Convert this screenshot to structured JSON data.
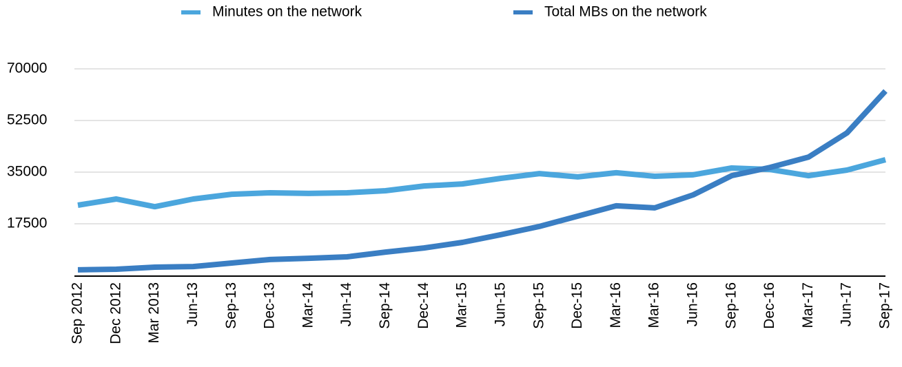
{
  "chart_data": {
    "type": "line",
    "categories": [
      "Sep 2012",
      "Dec 2012",
      "Mar 2013",
      "Jun-13",
      "Sep-13",
      "Dec-13",
      "Mar-14",
      "Jun-14",
      "Sep-14",
      "Dec-14",
      "Mar-15",
      "Jun-15",
      "Sep-15",
      "Dec-15",
      "Mar-16",
      "Mar-16",
      "Jun-16",
      "Sep-16",
      "Dec-16",
      "Mar-17",
      "Jun-17",
      "Sep-17"
    ],
    "series": [
      {
        "name": "Minutes on the network",
        "color": "#4ba6dd",
        "values": [
          23800,
          25900,
          23300,
          25900,
          27500,
          28000,
          27800,
          28000,
          28700,
          30300,
          31000,
          32900,
          34500,
          33400,
          34800,
          33600,
          34100,
          36400,
          35900,
          33800,
          35700,
          39200
        ]
      },
      {
        "name": "Total MBs on the network",
        "color": "#3a7ec3",
        "values": [
          1900,
          2100,
          2800,
          3000,
          4200,
          5400,
          5800,
          6300,
          7900,
          9300,
          11200,
          13800,
          16600,
          20100,
          23600,
          22900,
          27300,
          33800,
          36600,
          40100,
          48300,
          62500
        ]
      }
    ],
    "ylim": [
      0,
      70000
    ],
    "yticks": [
      17500,
      35000,
      52500,
      70000
    ],
    "grid": true
  }
}
